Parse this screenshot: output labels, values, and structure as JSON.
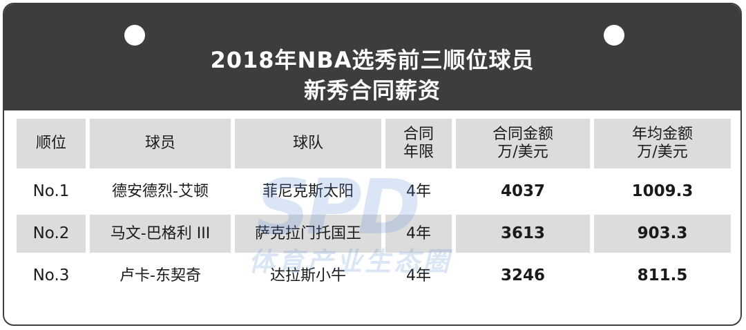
{
  "header": {
    "title_line1": "2018年NBA选秀前三顺位球员",
    "title_line2": "新秀合同薪资"
  },
  "table": {
    "columns": [
      "顺位",
      "球员",
      "球队",
      "合同\n年限",
      "合同金额\n万/美元",
      "年均金额\n万/美元"
    ],
    "rows": [
      [
        "No.1",
        "德安德烈-艾顿",
        "菲尼克斯太阳",
        "4年",
        "4037",
        "1009.3"
      ],
      [
        "No.2",
        "马文-巴格利 III",
        "萨克拉门托国王",
        "4年",
        "3613",
        "903.3"
      ],
      [
        "No.3",
        "卢卡-东契奇",
        "达拉斯小牛",
        "4年",
        "3246",
        "811.5"
      ]
    ]
  },
  "watermark": {
    "logo_text": "SPD",
    "caption": "体育产业生态圈"
  },
  "colors": {
    "header_bg": "#3d3d3d",
    "header_text": "#ffffff",
    "cell_shade": "#dcdcdc",
    "watermark": "#5b8fd6"
  }
}
